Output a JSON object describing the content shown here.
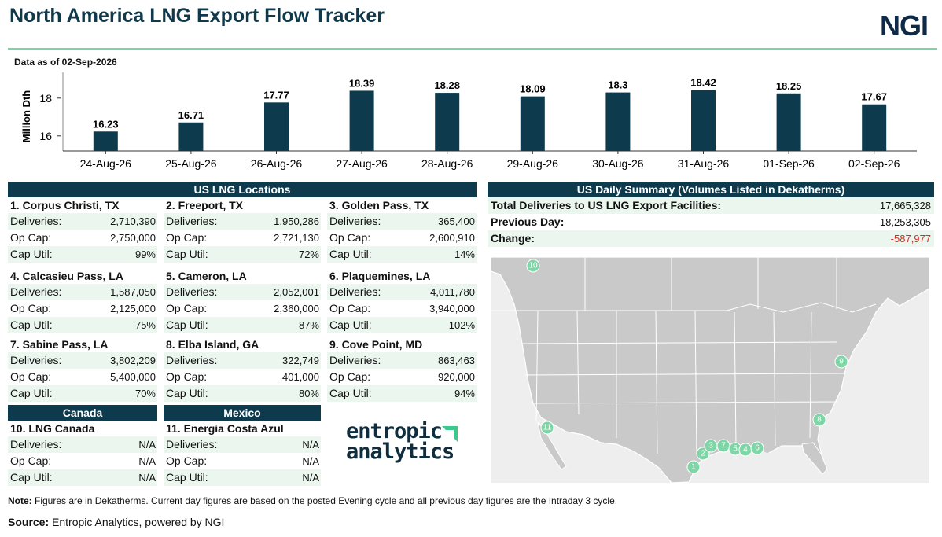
{
  "header": {
    "title": "North America LNG Export Flow Tracker",
    "brand": "NGI",
    "as_of": "Data as of 02-Sep-2026"
  },
  "chart_data": {
    "type": "bar",
    "categories": [
      "24-Aug-26",
      "25-Aug-26",
      "26-Aug-26",
      "27-Aug-26",
      "28-Aug-26",
      "29-Aug-26",
      "30-Aug-26",
      "31-Aug-26",
      "01-Sep-26",
      "02-Sep-26"
    ],
    "values": [
      16.23,
      16.71,
      17.77,
      18.39,
      18.28,
      18.09,
      18.3,
      18.42,
      18.25,
      17.67
    ],
    "value_labels": [
      "16.23",
      "16.71",
      "17.77",
      "18.39",
      "18.28",
      "18.09",
      "18.3",
      "18.42",
      "18.25",
      "17.67"
    ],
    "ylabel": "Million Dth",
    "yticks": [
      16,
      18
    ],
    "ylim": [
      15.2,
      19.2
    ],
    "bar_color": "#0e3a4d"
  },
  "us_locations": {
    "header": "US LNG Locations",
    "labels": {
      "deliveries": "Deliveries:",
      "op_cap": "Op Cap:",
      "cap_util": "Cap Util:"
    },
    "items": [
      {
        "name": "1. Corpus Christi, TX",
        "deliveries": "2,710,390",
        "op_cap": "2,750,000",
        "cap_util": "99%"
      },
      {
        "name": "2. Freeport, TX",
        "deliveries": "1,950,286",
        "op_cap": "2,721,130",
        "cap_util": "72%"
      },
      {
        "name": "3. Golden Pass, TX",
        "deliveries": "365,400",
        "op_cap": "2,600,910",
        "cap_util": "14%"
      },
      {
        "name": "4. Calcasieu Pass, LA",
        "deliveries": "1,587,050",
        "op_cap": "2,125,000",
        "cap_util": "75%"
      },
      {
        "name": "5. Cameron, LA",
        "deliveries": "2,052,001",
        "op_cap": "2,360,000",
        "cap_util": "87%"
      },
      {
        "name": "6. Plaquemines, LA",
        "deliveries": "4,011,780",
        "op_cap": "3,940,000",
        "cap_util": "102%"
      },
      {
        "name": "7. Sabine Pass, LA",
        "deliveries": "3,802,209",
        "op_cap": "5,400,000",
        "cap_util": "70%"
      },
      {
        "name": "8. Elba Island, GA",
        "deliveries": "322,749",
        "op_cap": "401,000",
        "cap_util": "80%"
      },
      {
        "name": "9. Cove Point, MD",
        "deliveries": "863,463",
        "op_cap": "920,000",
        "cap_util": "94%"
      }
    ]
  },
  "canada": {
    "header": "Canada",
    "item": {
      "name": "10. LNG Canada",
      "deliveries": "N/A",
      "op_cap": "N/A",
      "cap_util": "N/A"
    }
  },
  "mexico": {
    "header": "Mexico",
    "item": {
      "name": "11. Energia Costa Azul",
      "deliveries": "N/A",
      "op_cap": "N/A",
      "cap_util": "N/A"
    }
  },
  "summary": {
    "header": "US Daily Summary (Volumes Listed in Dekatherms)",
    "total_label": "Total Deliveries to US LNG Export Facilities:",
    "total_value": "17,665,328",
    "prev_label": "Previous Day:",
    "prev_value": "18,253,305",
    "change_label": "Change:",
    "change_value": "-587,977",
    "change_color": "#d62d20"
  },
  "map": {
    "markers": [
      "1",
      "2",
      "3",
      "4",
      "5",
      "6",
      "7",
      "8",
      "9",
      "10",
      "11"
    ],
    "marker_color": "#7ed6a6",
    "land_color": "#c8c8c8"
  },
  "logo2": {
    "line1": "entropic",
    "line2": "analytics"
  },
  "footer": {
    "note_label": "Note:",
    "note_text": " Figures are in Dekatherms.  Current day figures are based on the posted Evening cycle and all previous day figures are the Intraday 3 cycle.",
    "source_label": "Source:",
    "source_text": " Entropic Analytics, powered by NGI"
  }
}
